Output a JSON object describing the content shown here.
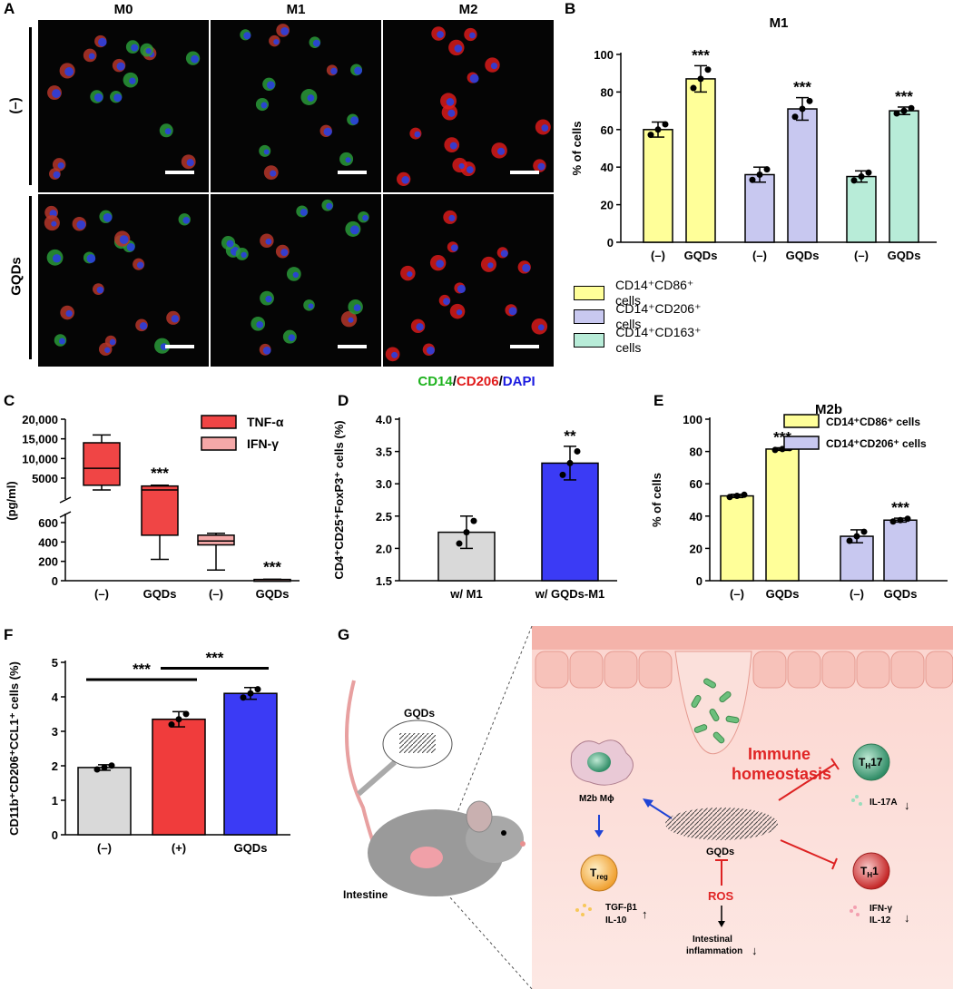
{
  "panel_labels": {
    "A": "A",
    "B": "B",
    "C": "C",
    "D": "D",
    "E": "E",
    "F": "F",
    "G": "G"
  },
  "panelA": {
    "columns": [
      "M0",
      "M1",
      "M2"
    ],
    "rows": [
      "(–)",
      "GQDs"
    ],
    "stain_parts": [
      {
        "text": "CD14",
        "color": "#1db21d"
      },
      {
        "text": "/",
        "color": "#000000"
      },
      {
        "text": "CD206",
        "color": "#e01b1b"
      },
      {
        "text": "/",
        "color": "#000000"
      },
      {
        "text": "DAPI",
        "color": "#1b1be0"
      }
    ]
  },
  "chart_data": [
    {
      "id": "B",
      "type": "bar",
      "title": "M1",
      "ylabel": "% of cells",
      "ylim": [
        0,
        100
      ],
      "yticks": [
        0,
        20,
        40,
        60,
        80,
        100
      ],
      "categories": [
        "(–)",
        "GQDs",
        "(–)",
        "GQDs",
        "(–)",
        "GQDs"
      ],
      "values": [
        60,
        87,
        36,
        71,
        35,
        70
      ],
      "errors": [
        4,
        7,
        4,
        6,
        3,
        2
      ],
      "colors": [
        "#ffff99",
        "#ffff99",
        "#c8c8f0",
        "#c8c8f0",
        "#b8ecd8",
        "#b8ecd8"
      ],
      "annotations": [
        "",
        "***",
        "",
        "***",
        "",
        "***"
      ],
      "legend": [
        {
          "label": "CD14⁺CD86⁺ cells",
          "color": "#ffff99"
        },
        {
          "label": "CD14⁺CD206⁺ cells",
          "color": "#c8c8f0"
        },
        {
          "label": "CD14⁺CD163⁺ cells",
          "color": "#b8ecd8"
        }
      ]
    },
    {
      "id": "C",
      "type": "box",
      "ylabel": "(pg/ml)",
      "upper_ticks": [
        "20,000",
        "15,000",
        "10,000",
        "5000"
      ],
      "lower_ticks": [
        "600",
        "400",
        "200",
        "0"
      ],
      "categories": [
        "(–)",
        "GQDs",
        "(–)",
        "GQDs"
      ],
      "boxes": [
        {
          "series": "TNF-α",
          "min": 2000,
          "q1": 3200,
          "median": 7500,
          "q3": 14000,
          "max": 16000
        },
        {
          "series": "TNF-α",
          "min": 220,
          "q1": 470,
          "median": 2000,
          "q3": 3000,
          "max": 3200
        },
        {
          "series": "IFN-γ",
          "min": 110,
          "q1": 370,
          "median": 410,
          "q3": 470,
          "max": 490
        },
        {
          "series": "IFN-γ",
          "min": 5,
          "q1": 8,
          "median": 10,
          "q3": 13,
          "max": 15
        }
      ],
      "annotations": [
        "",
        "***",
        "",
        "***"
      ],
      "legend": [
        {
          "label": "TNF-α",
          "color": "#f04545"
        },
        {
          "label": "IFN-γ",
          "color": "#f5a8a8"
        }
      ]
    },
    {
      "id": "D",
      "type": "bar",
      "ylabel": "CD4⁺CD25⁺FoxP3⁺ cells (%)",
      "ylim": [
        1.5,
        4.0
      ],
      "yticks": [
        "1.5",
        "2.0",
        "2.5",
        "3.0",
        "3.5",
        "4.0"
      ],
      "categories": [
        "w/ M1",
        "w/ GQDs-M1"
      ],
      "values": [
        2.25,
        3.32
      ],
      "errors": [
        0.25,
        0.26
      ],
      "colors": [
        "#d9d9d9",
        "#3b3bf5"
      ],
      "annotations": [
        "",
        "**"
      ]
    },
    {
      "id": "E",
      "type": "bar",
      "title": "M2b",
      "ylabel": "% of cells",
      "ylim": [
        0,
        100
      ],
      "yticks": [
        0,
        20,
        40,
        60,
        80,
        100
      ],
      "categories": [
        "(–)",
        "GQDs",
        "(–)",
        "GQDs"
      ],
      "values": [
        52.5,
        81.5,
        27.5,
        37.5
      ],
      "errors": [
        1,
        0.8,
        4,
        1.2
      ],
      "colors": [
        "#ffff99",
        "#ffff99",
        "#c8c8f0",
        "#c8c8f0"
      ],
      "annotations": [
        "",
        "***",
        "",
        "***"
      ],
      "legend": [
        {
          "label": "CD14⁺CD86⁺ cells",
          "color": "#ffff99"
        },
        {
          "label": "CD14⁺CD206⁺ cells",
          "color": "#c8c8f0"
        }
      ]
    },
    {
      "id": "F",
      "type": "bar",
      "ylabel": "CD11b⁺CD206⁺CCL1⁺ cells (%)",
      "ylim": [
        0,
        5
      ],
      "yticks": [
        0,
        1,
        2,
        3,
        4,
        5
      ],
      "categories": [
        "(–)",
        "(+)",
        "GQDs"
      ],
      "values": [
        1.95,
        3.35,
        4.1
      ],
      "errors": [
        0.08,
        0.22,
        0.17
      ],
      "colors": [
        "#d9d9d9",
        "#f03c3c",
        "#3b3bf5"
      ],
      "comparisons": [
        {
          "label": "***",
          "from": 0,
          "to": 1
        },
        {
          "label": "***",
          "from": 1,
          "to": 2
        }
      ]
    }
  ],
  "panelG": {
    "gqds_top": "GQDs",
    "intestine": "Intestine",
    "m2b": "M2b Mϕ",
    "immune1": "Immune",
    "immune2": "homeostasis",
    "th17_main": "T",
    "th17_sub": "H",
    "th17_end": "17",
    "il17a": "IL-17A",
    "th1_main": "T",
    "th1_sub": "H",
    "th1_end": "1",
    "ifn_il12_1": "IFN-γ",
    "ifn_il12_2": "IL-12",
    "treg_main": "T",
    "treg_sub": "reg",
    "tgf1": "TGF-β1",
    "tgf2": "IL-10",
    "gqds_center": "GQDs",
    "ros": "ROS",
    "infl1": "Intestinal",
    "infl2": "inflammation"
  }
}
